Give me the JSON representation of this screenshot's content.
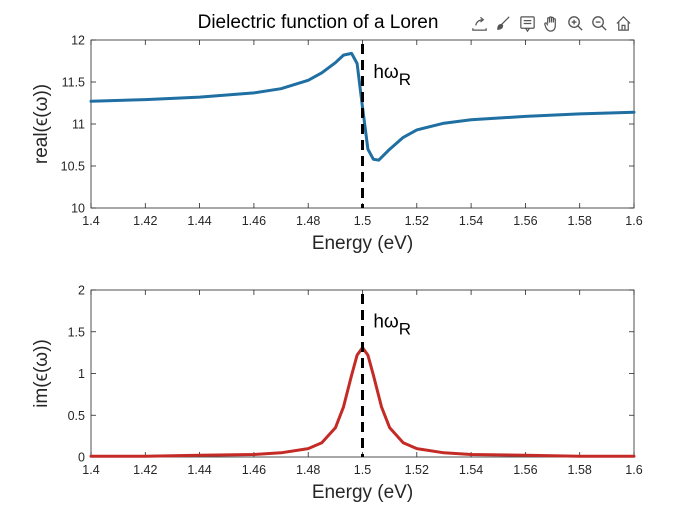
{
  "figure": {
    "title": "Dielectric function of a Loren",
    "toolbar": [
      {
        "name": "export-icon"
      },
      {
        "name": "brush-icon"
      },
      {
        "name": "datatip-icon"
      },
      {
        "name": "pan-hand-icon"
      },
      {
        "name": "zoom-in-icon"
      },
      {
        "name": "zoom-out-icon"
      },
      {
        "name": "home-icon"
      }
    ]
  },
  "colors": {
    "real_line": "#1f6fa3",
    "imag_line": "#c42b26",
    "marker_line": "#000000"
  },
  "chart_data": [
    {
      "type": "line",
      "xlabel": "Energy (eV)",
      "ylabel": "real(ϵ(ω))",
      "xlim": [
        1.4,
        1.6
      ],
      "ylim": [
        10,
        12
      ],
      "xticks": [
        1.4,
        1.42,
        1.44,
        1.46,
        1.48,
        1.5,
        1.52,
        1.54,
        1.56,
        1.58,
        1.6
      ],
      "yticks": [
        10,
        10.5,
        11,
        11.5,
        12
      ],
      "grid": false,
      "series": [
        {
          "x": [
            1.4,
            1.42,
            1.44,
            1.46,
            1.47,
            1.48,
            1.485,
            1.49,
            1.493,
            1.496,
            1.498,
            1.5,
            1.502,
            1.504,
            1.506,
            1.51,
            1.515,
            1.52,
            1.53,
            1.54,
            1.56,
            1.58,
            1.6
          ],
          "y": [
            11.27,
            11.29,
            11.32,
            11.37,
            11.42,
            11.52,
            11.61,
            11.73,
            11.82,
            11.84,
            11.72,
            11.2,
            10.7,
            10.58,
            10.57,
            10.7,
            10.84,
            10.93,
            11.01,
            11.05,
            11.09,
            11.12,
            11.14
          ]
        }
      ],
      "annotations": [
        {
          "text": "hω",
          "subscript": "R",
          "x": 1.504,
          "y": 11.55
        },
        {
          "type": "vline",
          "x": 1.5,
          "style": "dashed"
        }
      ]
    },
    {
      "type": "line",
      "xlabel": "Energy (eV)",
      "ylabel": "im(ϵ(ω))",
      "xlim": [
        1.4,
        1.6
      ],
      "ylim": [
        0,
        2
      ],
      "xticks": [
        1.4,
        1.42,
        1.44,
        1.46,
        1.48,
        1.5,
        1.52,
        1.54,
        1.56,
        1.58,
        1.6
      ],
      "yticks": [
        0,
        0.5,
        1,
        1.5,
        2
      ],
      "grid": false,
      "series": [
        {
          "x": [
            1.4,
            1.42,
            1.44,
            1.46,
            1.47,
            1.48,
            1.485,
            1.49,
            1.493,
            1.496,
            1.498,
            1.5,
            1.502,
            1.504,
            1.507,
            1.51,
            1.515,
            1.52,
            1.53,
            1.54,
            1.56,
            1.58,
            1.6
          ],
          "y": [
            0.01,
            0.01,
            0.02,
            0.03,
            0.05,
            0.1,
            0.17,
            0.35,
            0.6,
            0.98,
            1.22,
            1.31,
            1.22,
            0.98,
            0.6,
            0.35,
            0.17,
            0.1,
            0.05,
            0.03,
            0.02,
            0.01,
            0.01
          ]
        }
      ],
      "annotations": [
        {
          "text": "hω",
          "subscript": "R",
          "x": 1.504,
          "y": 1.55
        },
        {
          "type": "vline",
          "x": 1.5,
          "style": "dashed"
        }
      ]
    }
  ]
}
